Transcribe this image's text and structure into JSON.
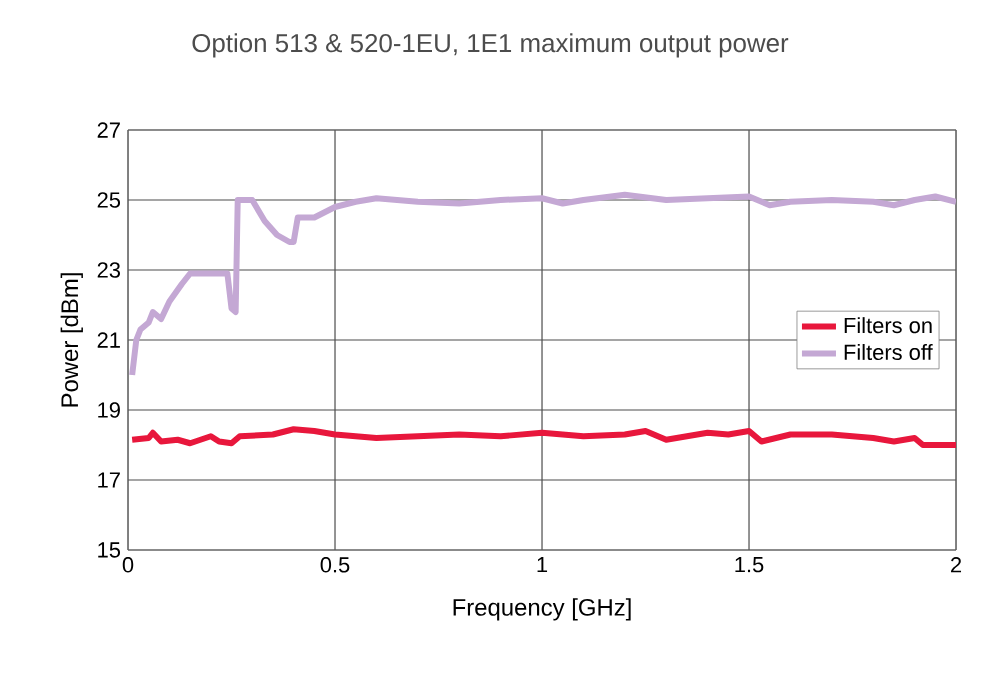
{
  "chart_data": {
    "type": "line",
    "title": "Option 513 & 520-1EU, 1E1 maximum output power",
    "xlabel": "Frequency [GHz]",
    "ylabel": "Power [dBm]",
    "xlim": [
      0,
      2
    ],
    "xticks": [
      0,
      0.5,
      1,
      1.5,
      2
    ],
    "ylim": [
      15,
      27
    ],
    "yticks": [
      15,
      17,
      19,
      21,
      23,
      25,
      27
    ],
    "grid": true,
    "legend": "right",
    "marker": "none",
    "line_style": "solid",
    "series": [
      {
        "name": "Filters on",
        "color": "#e8173c",
        "x": [
          0.01,
          0.05,
          0.06,
          0.08,
          0.12,
          0.15,
          0.2,
          0.22,
          0.25,
          0.27,
          0.35,
          0.4,
          0.45,
          0.5,
          0.6,
          0.7,
          0.8,
          0.9,
          1.0,
          1.1,
          1.2,
          1.25,
          1.3,
          1.35,
          1.4,
          1.45,
          1.5,
          1.53,
          1.6,
          1.7,
          1.8,
          1.85,
          1.9,
          1.92,
          2.0
        ],
        "values": [
          18.15,
          18.2,
          18.35,
          18.1,
          18.15,
          18.05,
          18.25,
          18.1,
          18.05,
          18.25,
          18.3,
          18.45,
          18.4,
          18.3,
          18.2,
          18.25,
          18.3,
          18.25,
          18.35,
          18.25,
          18.3,
          18.4,
          18.15,
          18.25,
          18.35,
          18.3,
          18.4,
          18.1,
          18.3,
          18.3,
          18.2,
          18.1,
          18.2,
          18.0,
          18.0
        ]
      },
      {
        "name": "Filters off",
        "color": "#c4a8d4",
        "x": [
          0.01,
          0.02,
          0.03,
          0.05,
          0.06,
          0.08,
          0.1,
          0.13,
          0.15,
          0.2,
          0.24,
          0.25,
          0.26,
          0.265,
          0.3,
          0.33,
          0.36,
          0.39,
          0.4,
          0.41,
          0.45,
          0.5,
          0.55,
          0.6,
          0.7,
          0.8,
          0.9,
          1.0,
          1.05,
          1.1,
          1.2,
          1.3,
          1.4,
          1.5,
          1.55,
          1.6,
          1.7,
          1.8,
          1.85,
          1.9,
          1.95,
          2.0
        ],
        "values": [
          20.0,
          21.0,
          21.3,
          21.5,
          21.8,
          21.6,
          22.1,
          22.6,
          22.9,
          22.9,
          22.9,
          21.9,
          21.8,
          25.0,
          25.0,
          24.4,
          24.0,
          23.8,
          23.8,
          24.5,
          24.5,
          24.8,
          24.95,
          25.05,
          24.95,
          24.9,
          25.0,
          25.05,
          24.9,
          25.0,
          25.15,
          25.0,
          25.05,
          25.1,
          24.85,
          24.95,
          25.0,
          24.95,
          24.85,
          25.0,
          25.1,
          24.95
        ]
      }
    ]
  }
}
